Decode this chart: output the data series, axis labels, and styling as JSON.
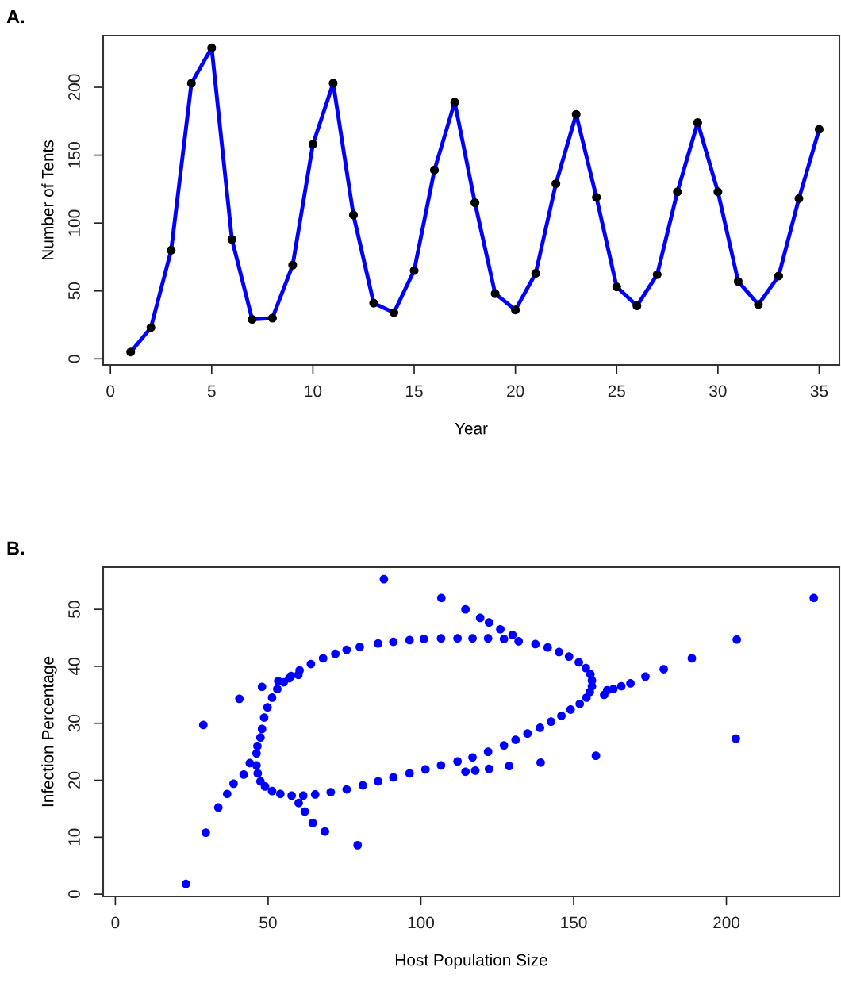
{
  "chart_data": [
    {
      "type": "line",
      "title": "A.",
      "xlabel": "Year",
      "ylabel": "Number of Tents",
      "x": [
        1,
        2,
        3,
        4,
        5,
        6,
        7,
        8,
        9,
        10,
        11,
        12,
        13,
        14,
        15,
        16,
        17,
        18,
        19,
        20,
        21,
        22,
        23,
        24,
        25,
        26,
        27,
        28,
        29,
        30,
        31,
        32,
        33,
        34,
        35
      ],
      "series": [
        {
          "color": "#0000ff",
          "values": [
            5,
            23,
            80,
            203,
            229,
            88,
            29,
            30,
            69,
            158,
            203,
            106,
            41,
            34,
            65,
            139,
            189,
            115,
            48,
            36,
            63,
            129,
            180,
            119,
            53,
            39,
            62,
            123,
            174,
            123,
            57,
            40,
            61,
            118,
            169
          ]
        }
      ],
      "marker": "circle",
      "line_style": "solid",
      "grid": false,
      "legend": false,
      "xlim": [
        -0.36,
        36.0
      ],
      "ylim": [
        -4.5,
        238
      ],
      "xticks": [
        0,
        5,
        10,
        15,
        20,
        25,
        30,
        35
      ],
      "yticks": [
        0,
        50,
        100,
        150,
        200
      ]
    },
    {
      "type": "scatter",
      "title": "B.",
      "xlabel": "Host Population Size",
      "ylabel": "Infection Percentage",
      "series": [
        {
          "color": "#0000ff",
          "x": [
            87.9,
            106.7,
            114.6,
            119.4,
            122.3,
            126,
            130,
            228.6,
            203.4,
            188.7,
            179.5,
            173.5,
            168.6,
            165.6,
            161,
            203.1,
            157.3,
            139.2,
            128.9,
            122.3,
            117.8,
            114.6,
            28.8,
            40.6,
            48.0,
            53.3,
            56.9,
            59.9,
            23.1,
            29.6,
            33.7,
            36.6,
            38.7,
            42,
            44,
            79.3,
            68.6,
            64.6,
            62,
            60,
            160,
            163,
            46.5,
            47.5,
            48,
            48.7,
            49.8,
            51.3,
            53,
            55.1,
            57.5,
            60.3,
            64,
            68,
            72,
            75.7,
            80,
            86,
            91,
            96.3,
            101,
            106.6,
            112,
            116.9,
            122,
            127.2,
            132,
            137.5,
            141.5,
            145.2,
            148.5,
            151.7,
            154,
            155.5,
            156,
            156,
            155.3,
            154.2,
            152,
            149,
            146,
            142.6,
            139,
            134.9,
            131,
            127.2,
            122,
            116.9,
            112,
            106.6,
            101.5,
            96.3,
            91,
            86,
            81,
            75.7,
            70.5,
            65.4,
            61.5,
            57.7,
            54,
            51.3,
            49,
            47.5,
            46.6,
            46.2,
            46.2
          ],
          "values": [
            55.3,
            52.0,
            50.0,
            48.5,
            47.7,
            46.5,
            45.5,
            52.0,
            44.7,
            41.4,
            39.5,
            38.2,
            37.0,
            36.5,
            35.8,
            27.3,
            24.3,
            23.1,
            22.5,
            22.0,
            21.7,
            21.5,
            29.7,
            34.3,
            36.4,
            37.4,
            37.9,
            38.5,
            1.8,
            10.8,
            15.2,
            17.6,
            19.4,
            21,
            23,
            8.6,
            11.0,
            12.5,
            14.5,
            16,
            35,
            36,
            26,
            27.5,
            29,
            31,
            32.8,
            34.5,
            36,
            37.2,
            38.3,
            39.3,
            40.4,
            41.4,
            42.2,
            42.9,
            43.4,
            44,
            44.3,
            44.6,
            44.8,
            44.9,
            44.9,
            44.9,
            44.9,
            44.8,
            44.4,
            43.9,
            43.3,
            42.5,
            41.7,
            40.7,
            39.7,
            38.6,
            37.5,
            36.5,
            35.5,
            34.5,
            33.4,
            32.4,
            31.3,
            30.3,
            29.2,
            28.2,
            27.1,
            26.1,
            25,
            24,
            23.3,
            22.6,
            21.9,
            21.2,
            20.5,
            19.8,
            19.1,
            18.4,
            17.9,
            17.5,
            17.3,
            17.3,
            17.6,
            18.1,
            18.9,
            19.8,
            21.2,
            22.6,
            24.7
          ]
        }
      ],
      "marker": "circle",
      "grid": false,
      "legend": false,
      "xlim": [
        -4,
        237
      ],
      "ylim": [
        -0.4,
        57.4
      ],
      "xticks": [
        0,
        50,
        100,
        150,
        200
      ],
      "yticks": [
        0,
        10,
        20,
        30,
        40,
        50
      ]
    }
  ]
}
